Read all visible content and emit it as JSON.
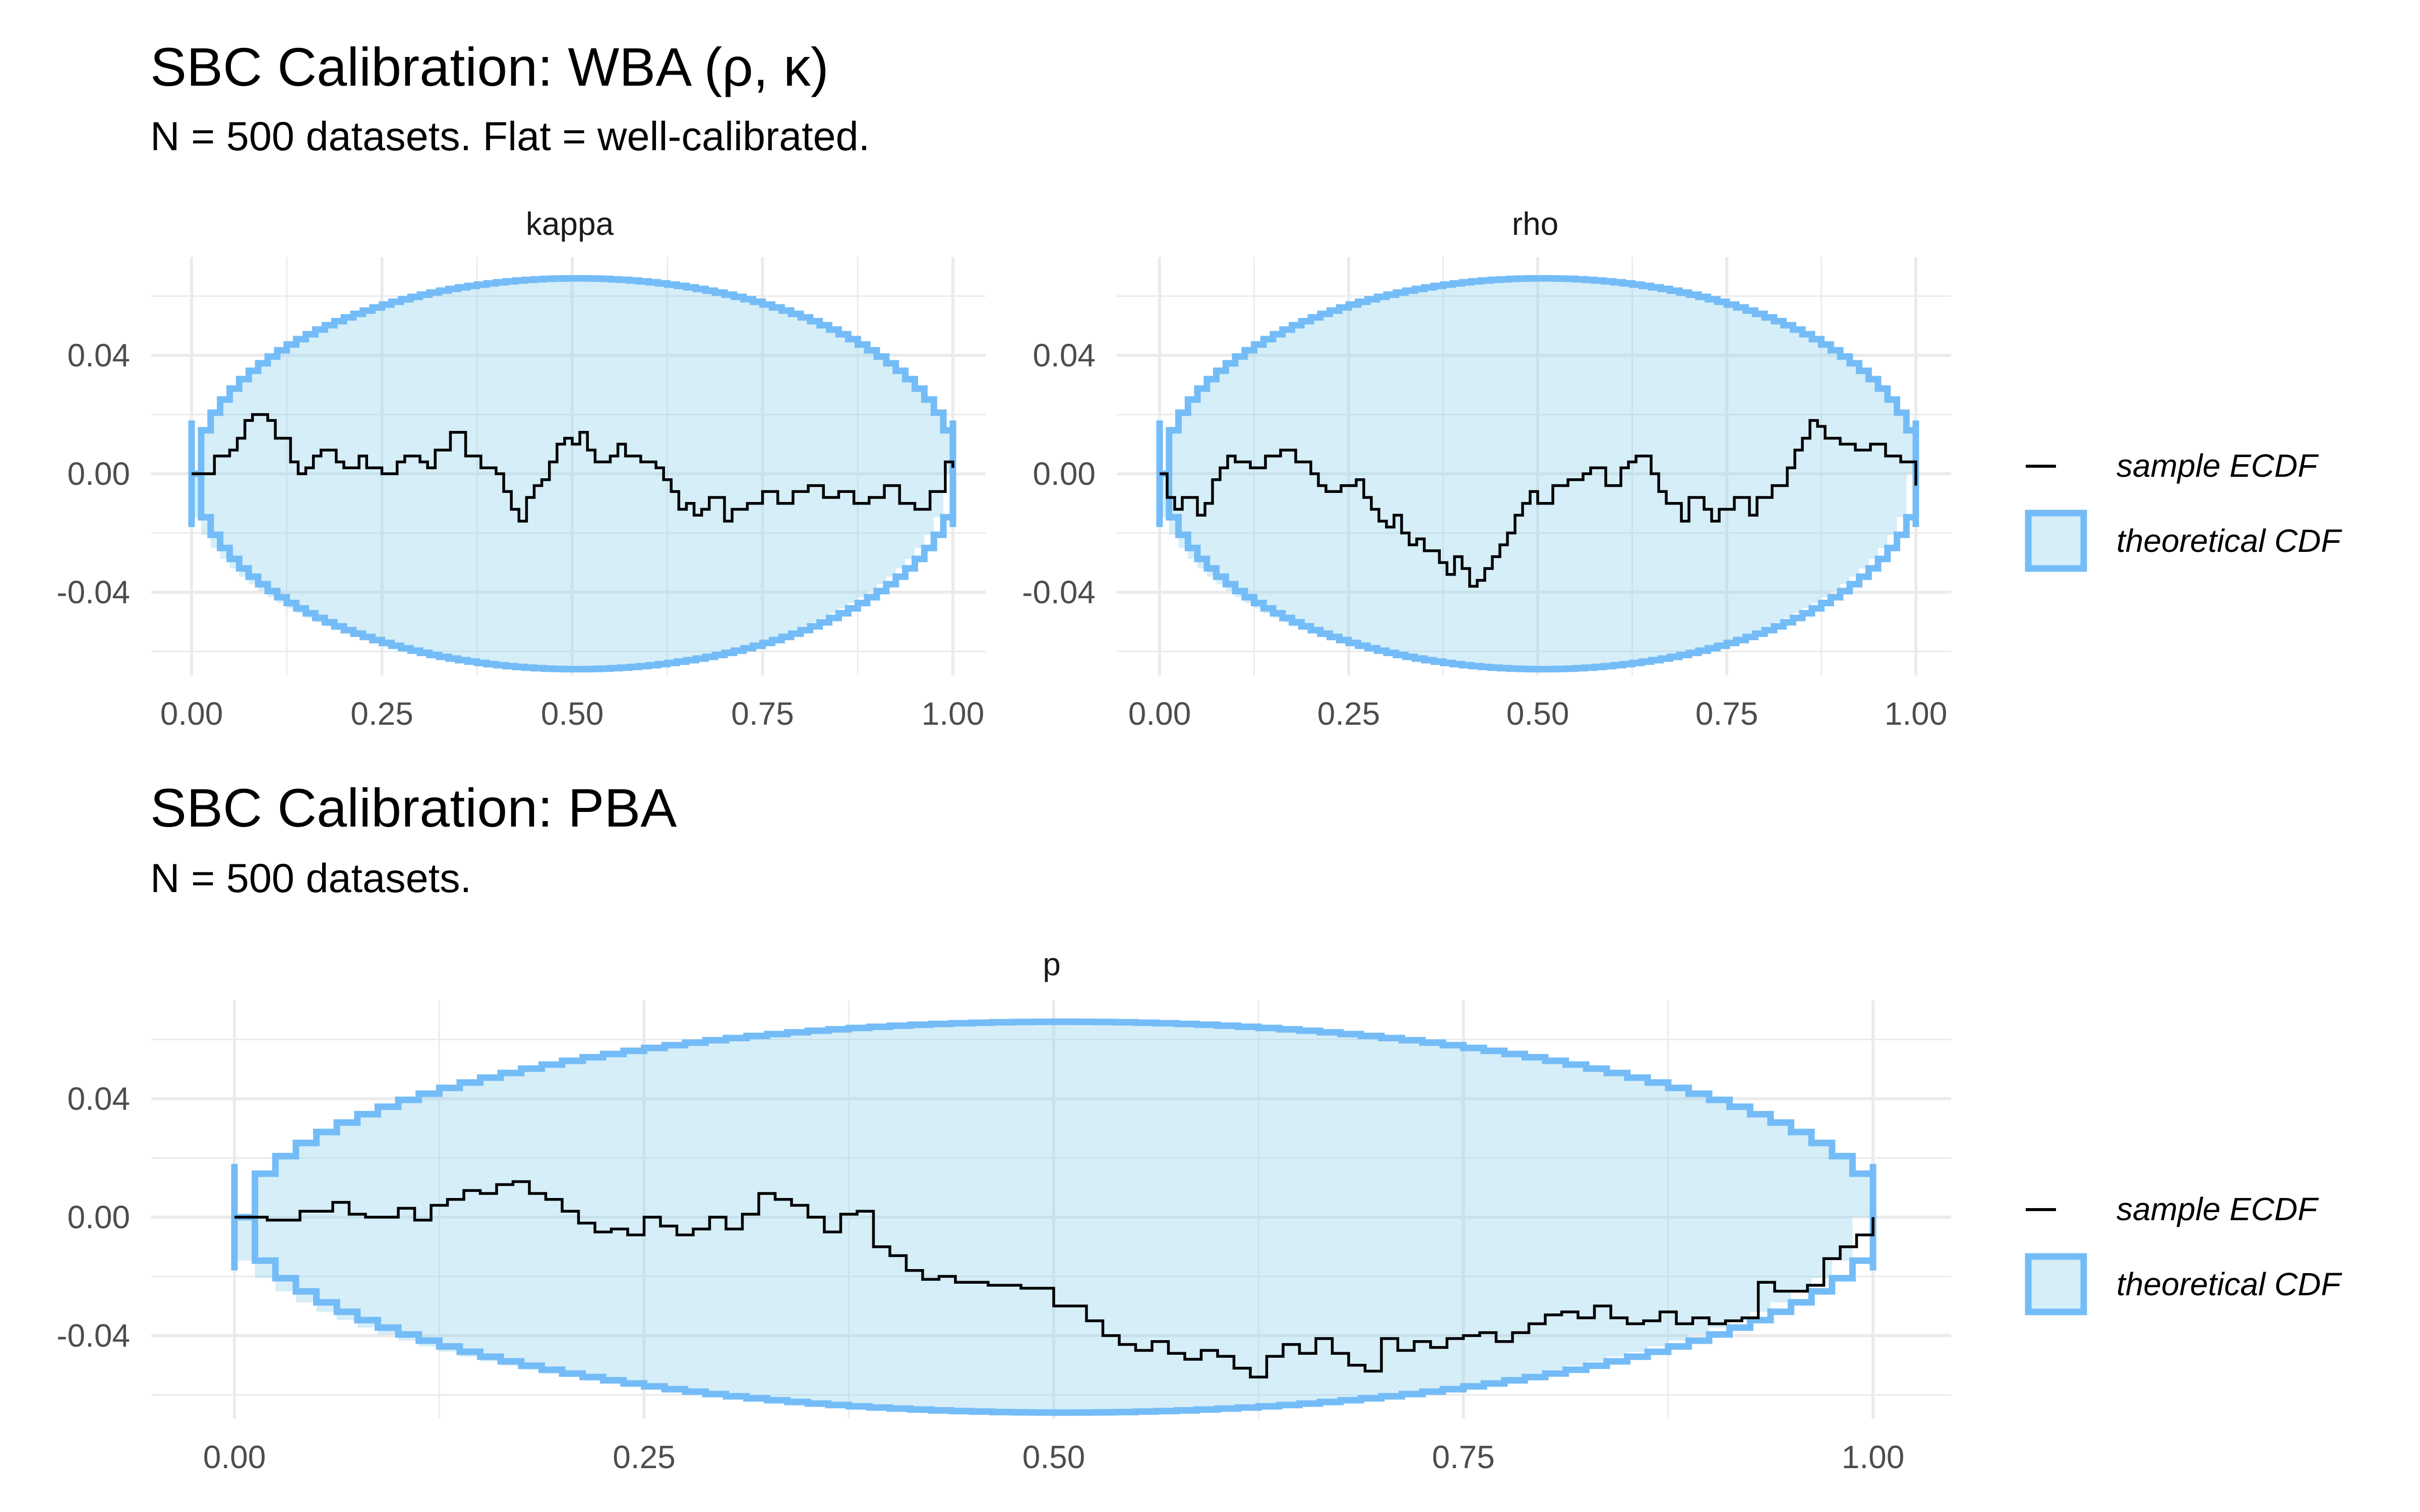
{
  "chart_data": [
    {
      "type": "line",
      "block": "wba",
      "title": "SBC Calibration: WBA (ρ, κ)",
      "subtitle": "N = 500 datasets. Flat = well-calibrated.",
      "xlabel": "",
      "ylabel": "",
      "xlim": [
        0,
        1
      ],
      "ylim": [
        -0.066,
        0.066
      ],
      "x_ticks": [
        "0.00",
        "0.25",
        "0.50",
        "0.75",
        "1.00"
      ],
      "y_ticks": [
        "0.04",
        "0.00",
        "-0.04"
      ],
      "band_halfwidth_max": 0.066,
      "legend": {
        "position": "right",
        "entries": [
          {
            "label": "sample ECDF",
            "kind": "line",
            "color": "#000000"
          },
          {
            "label": "theoretical CDF",
            "kind": "band",
            "color": "#74bcf7",
            "fill": "#87ceeb"
          }
        ]
      },
      "panels": [
        {
          "strip": "kappa",
          "series": [
            {
              "name": "sample ECDF",
              "x": [
                0,
                0.02,
                0.03,
                0.05,
                0.06,
                0.07,
                0.08,
                0.1,
                0.11,
                0.13,
                0.14,
                0.15,
                0.16,
                0.17,
                0.19,
                0.2,
                0.22,
                0.23,
                0.25,
                0.27,
                0.28,
                0.3,
                0.31,
                0.32,
                0.34,
                0.36,
                0.38,
                0.4,
                0.41,
                0.42,
                0.43,
                0.44,
                0.45,
                0.46,
                0.47,
                0.48,
                0.49,
                0.5,
                0.51,
                0.52,
                0.53,
                0.55,
                0.56,
                0.57,
                0.59,
                0.61,
                0.62,
                0.63,
                0.64,
                0.65,
                0.66,
                0.67,
                0.68,
                0.7,
                0.71,
                0.73,
                0.75,
                0.77,
                0.79,
                0.81,
                0.83,
                0.85,
                0.87,
                0.89,
                0.91,
                0.93,
                0.95,
                0.97,
                0.99,
                1.0
              ],
              "y": [
                0,
                0,
                0.006,
                0.008,
                0.012,
                0.018,
                0.02,
                0.018,
                0.012,
                0.004,
                0.0,
                0.002,
                0.006,
                0.008,
                0.004,
                0.002,
                0.006,
                0.002,
                0.0,
                0.004,
                0.006,
                0.004,
                0.002,
                0.008,
                0.014,
                0.006,
                0.002,
                0.0,
                -0.006,
                -0.012,
                -0.016,
                -0.008,
                -0.004,
                -0.002,
                0.004,
                0.01,
                0.012,
                0.01,
                0.014,
                0.008,
                0.004,
                0.006,
                0.01,
                0.006,
                0.004,
                0.002,
                -0.002,
                -0.006,
                -0.012,
                -0.01,
                -0.014,
                -0.012,
                -0.008,
                -0.016,
                -0.012,
                -0.01,
                -0.006,
                -0.01,
                -0.006,
                -0.004,
                -0.008,
                -0.006,
                -0.01,
                -0.008,
                -0.004,
                -0.01,
                -0.012,
                -0.006,
                0.004,
                0.002
              ]
            }
          ]
        },
        {
          "strip": "rho",
          "series": [
            {
              "name": "sample ECDF",
              "x": [
                0,
                0.01,
                0.02,
                0.03,
                0.05,
                0.06,
                0.07,
                0.08,
                0.09,
                0.1,
                0.12,
                0.14,
                0.16,
                0.18,
                0.2,
                0.21,
                0.22,
                0.24,
                0.26,
                0.27,
                0.28,
                0.29,
                0.3,
                0.31,
                0.32,
                0.33,
                0.34,
                0.35,
                0.37,
                0.38,
                0.39,
                0.4,
                0.41,
                0.42,
                0.43,
                0.44,
                0.45,
                0.46,
                0.47,
                0.48,
                0.49,
                0.5,
                0.52,
                0.54,
                0.56,
                0.57,
                0.59,
                0.61,
                0.62,
                0.63,
                0.65,
                0.66,
                0.67,
                0.69,
                0.7,
                0.72,
                0.73,
                0.74,
                0.76,
                0.78,
                0.79,
                0.81,
                0.83,
                0.84,
                0.85,
                0.86,
                0.87,
                0.88,
                0.9,
                0.92,
                0.94,
                0.96,
                0.98,
                1.0
              ],
              "y": [
                0,
                -0.008,
                -0.012,
                -0.008,
                -0.014,
                -0.01,
                -0.002,
                0.002,
                0.006,
                0.004,
                0.002,
                0.006,
                0.008,
                0.004,
                0.0,
                -0.004,
                -0.006,
                -0.004,
                -0.002,
                -0.008,
                -0.012,
                -0.016,
                -0.018,
                -0.014,
                -0.02,
                -0.024,
                -0.022,
                -0.026,
                -0.03,
                -0.034,
                -0.028,
                -0.032,
                -0.038,
                -0.036,
                -0.032,
                -0.028,
                -0.024,
                -0.02,
                -0.014,
                -0.01,
                -0.006,
                -0.01,
                -0.004,
                -0.002,
                0.0,
                0.002,
                -0.004,
                0.002,
                0.004,
                0.006,
                0.0,
                -0.006,
                -0.01,
                -0.016,
                -0.008,
                -0.012,
                -0.016,
                -0.012,
                -0.008,
                -0.014,
                -0.008,
                -0.004,
                0.002,
                0.008,
                0.012,
                0.018,
                0.016,
                0.012,
                0.01,
                0.008,
                0.01,
                0.006,
                0.004,
                -0.004
              ]
            }
          ]
        }
      ]
    },
    {
      "type": "line",
      "block": "pba",
      "title": "SBC Calibration: PBA",
      "subtitle": "N = 500 datasets.",
      "xlabel": "",
      "ylabel": "",
      "xlim": [
        0,
        1
      ],
      "ylim": [
        -0.066,
        0.066
      ],
      "x_ticks": [
        "0.00",
        "0.25",
        "0.50",
        "0.75",
        "1.00"
      ],
      "y_ticks": [
        "0.04",
        "0.00",
        "-0.04"
      ],
      "band_halfwidth_max": 0.066,
      "legend": {
        "position": "right",
        "entries": [
          {
            "label": "sample ECDF",
            "kind": "line",
            "color": "#000000"
          },
          {
            "label": "theoretical CDF",
            "kind": "band",
            "color": "#74bcf7",
            "fill": "#87ceeb"
          }
        ]
      },
      "panels": [
        {
          "strip": "p",
          "series": [
            {
              "name": "sample ECDF",
              "x": [
                0,
                0.02,
                0.04,
                0.06,
                0.07,
                0.08,
                0.1,
                0.11,
                0.12,
                0.13,
                0.14,
                0.15,
                0.16,
                0.17,
                0.18,
                0.19,
                0.2,
                0.21,
                0.22,
                0.23,
                0.24,
                0.25,
                0.26,
                0.27,
                0.28,
                0.29,
                0.3,
                0.31,
                0.32,
                0.33,
                0.34,
                0.35,
                0.36,
                0.37,
                0.38,
                0.39,
                0.4,
                0.41,
                0.42,
                0.43,
                0.44,
                0.45,
                0.46,
                0.48,
                0.5,
                0.52,
                0.53,
                0.54,
                0.55,
                0.56,
                0.57,
                0.58,
                0.59,
                0.6,
                0.61,
                0.62,
                0.63,
                0.64,
                0.65,
                0.66,
                0.67,
                0.68,
                0.69,
                0.7,
                0.71,
                0.72,
                0.73,
                0.74,
                0.75,
                0.76,
                0.77,
                0.78,
                0.79,
                0.8,
                0.81,
                0.82,
                0.83,
                0.84,
                0.85,
                0.86,
                0.87,
                0.88,
                0.89,
                0.9,
                0.91,
                0.92,
                0.93,
                0.94,
                0.95,
                0.96,
                0.97,
                0.98,
                0.99,
                1.0
              ],
              "y": [
                0,
                -0.001,
                0.002,
                0.005,
                0.001,
                0.0,
                0.003,
                -0.001,
                0.004,
                0.006,
                0.009,
                0.008,
                0.011,
                0.012,
                0.008,
                0.006,
                0.002,
                -0.002,
                -0.005,
                -0.004,
                -0.006,
                0.0,
                -0.003,
                -0.006,
                -0.004,
                0.0,
                -0.004,
                0.001,
                0.008,
                0.006,
                0.004,
                0.0,
                -0.005,
                0.001,
                0.002,
                -0.01,
                -0.013,
                -0.018,
                -0.021,
                -0.02,
                -0.022,
                -0.022,
                -0.023,
                -0.024,
                -0.03,
                -0.035,
                -0.04,
                -0.043,
                -0.045,
                -0.042,
                -0.046,
                -0.048,
                -0.045,
                -0.047,
                -0.051,
                -0.054,
                -0.047,
                -0.043,
                -0.046,
                -0.041,
                -0.046,
                -0.05,
                -0.052,
                -0.041,
                -0.045,
                -0.042,
                -0.044,
                -0.041,
                -0.04,
                -0.039,
                -0.042,
                -0.039,
                -0.036,
                -0.033,
                -0.032,
                -0.034,
                -0.03,
                -0.034,
                -0.036,
                -0.035,
                -0.032,
                -0.036,
                -0.034,
                -0.036,
                -0.035,
                -0.034,
                -0.022,
                -0.025,
                -0.025,
                -0.023,
                -0.014,
                -0.01,
                -0.006,
                0.0
              ]
            }
          ]
        }
      ]
    }
  ]
}
